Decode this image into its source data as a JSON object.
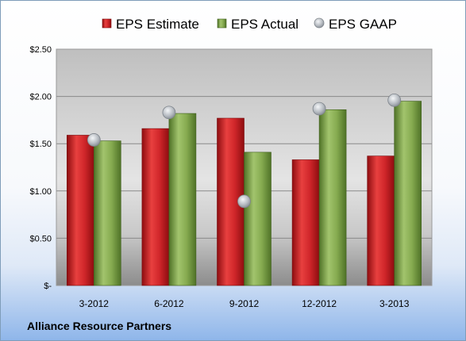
{
  "company_name": "Alliance Resource Partners",
  "chart_data": {
    "type": "bar",
    "title": "",
    "xlabel": "",
    "ylabel": "",
    "categories": [
      "3-2012",
      "6-2012",
      "9-2012",
      "12-2012",
      "3-2013"
    ],
    "series": [
      {
        "name": "EPS Estimate",
        "type": "bar",
        "color": "#c0171c",
        "values": [
          1.59,
          1.66,
          1.77,
          1.33,
          1.37
        ]
      },
      {
        "name": "EPS Actual",
        "type": "bar",
        "color": "#6f9a3a",
        "values": [
          1.53,
          1.82,
          1.41,
          1.86,
          1.95
        ]
      },
      {
        "name": "EPS GAAP",
        "type": "scatter",
        "color": "#b4b8bd",
        "values": [
          1.54,
          1.83,
          0.89,
          1.87,
          1.96
        ]
      }
    ],
    "ylim": [
      0,
      2.5
    ],
    "yticks": [
      {
        "value": 0,
        "label": "$-"
      },
      {
        "value": 0.5,
        "label": "$0.50"
      },
      {
        "value": 1.0,
        "label": "$1.00"
      },
      {
        "value": 1.5,
        "label": "$1.50"
      },
      {
        "value": 2.0,
        "label": "$2.00"
      },
      {
        "value": 2.5,
        "label": "$2.50"
      }
    ],
    "grid": true,
    "legend": "top"
  }
}
